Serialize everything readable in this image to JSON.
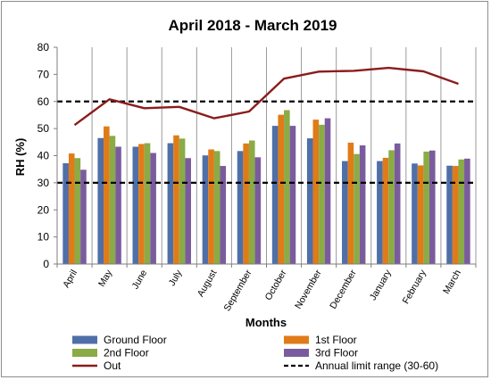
{
  "chart_data": {
    "type": "bar",
    "title": "April 2018 - March 2019",
    "xlabel": "Months",
    "ylabel": "RH (%)",
    "ylim": [
      0,
      80
    ],
    "yticks": [
      "0",
      "10",
      "20",
      "30",
      "40",
      "50",
      "60",
      "70",
      "80"
    ],
    "grid": "vertical",
    "legend_position": "bottom",
    "categories": [
      "April",
      "May",
      "June",
      "July",
      "August",
      "September",
      "October",
      "November",
      "December",
      "January",
      "February",
      "March"
    ],
    "series": [
      {
        "name": "Ground Floor",
        "type": "bar",
        "color": "#4f6fa8",
        "values": [
          37.2,
          46.5,
          43.3,
          44.6,
          40.1,
          41.7,
          51.0,
          46.4,
          38.0,
          38.0,
          37.1,
          36.3
        ]
      },
      {
        "name": "1st Floor",
        "type": "bar",
        "color": "#e07b18",
        "values": [
          40.8,
          50.8,
          44.3,
          47.5,
          42.3,
          44.5,
          55.1,
          53.3,
          44.8,
          39.2,
          36.4,
          36.2
        ]
      },
      {
        "name": "2nd Floor",
        "type": "bar",
        "color": "#8aab45",
        "values": [
          39.1,
          47.3,
          44.6,
          46.3,
          41.7,
          45.6,
          56.8,
          51.4,
          40.6,
          42.0,
          41.5,
          38.6
        ]
      },
      {
        "name": "3rd Floor",
        "type": "bar",
        "color": "#7a5c9e",
        "values": [
          34.8,
          43.3,
          41.0,
          39.1,
          36.2,
          39.4,
          51.0,
          53.8,
          43.8,
          44.5,
          41.9,
          38.9
        ]
      },
      {
        "name": "Out",
        "type": "line",
        "color": "#8b1c1c",
        "values": [
          51.3,
          60.8,
          57.5,
          58.0,
          53.8,
          56.3,
          68.4,
          71.0,
          71.3,
          72.4,
          71.1,
          66.5
        ]
      }
    ],
    "reference_lines": [
      {
        "name": "Annual limit range (30-60)",
        "values": [
          30,
          60
        ],
        "style": "dashed",
        "color": "#000000"
      }
    ]
  }
}
